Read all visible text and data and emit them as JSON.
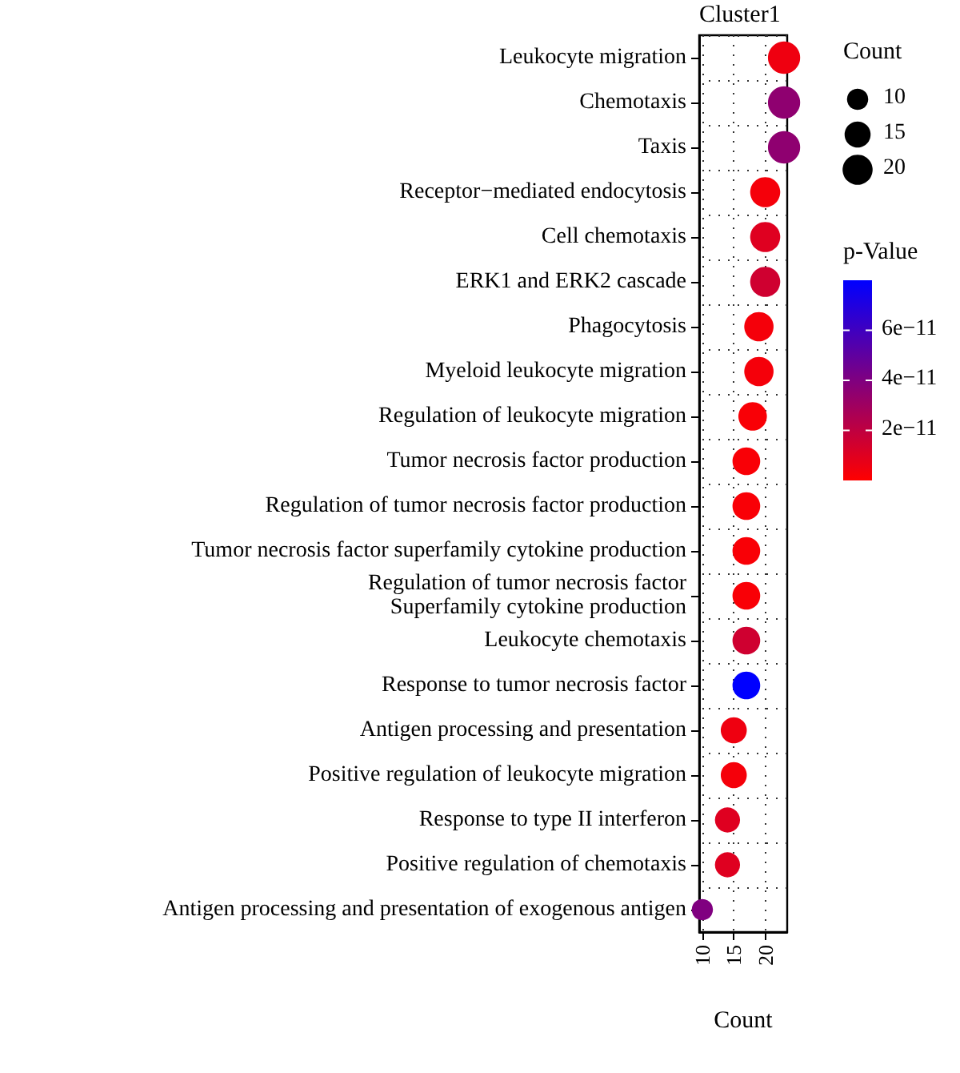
{
  "chart_data": {
    "type": "bubble",
    "title": "Cluster1",
    "xlabel": "Count",
    "legend_title": "Count",
    "clabel": "p-Value",
    "orientation": "horizontal",
    "categories": [
      "Leukocyte migration",
      "Chemotaxis",
      "Taxis",
      "Receptor−mediated endocytosis",
      "Cell chemotaxis",
      "ERK1 and ERK2 cascade",
      "Phagocytosis",
      "Myeloid leukocyte migration",
      "Regulation of leukocyte migration",
      "Tumor necrosis factor production",
      "Regulation of tumor necrosis factor production",
      "Tumor necrosis factor superfamily cytokine production",
      "Regulation of tumor necrosis factor\nSuperfamily cytokine production",
      "Leukocyte chemotaxis",
      "Response to tumor necrosis factor",
      "Antigen processing and presentation",
      "Positive regulation of leukocyte migration",
      "Response to type II interferon",
      "Positive regulation of chemotaxis",
      "Antigen processing and presentation of exogenous antigen"
    ],
    "values": [
      23,
      23,
      23,
      20,
      20,
      20,
      19,
      19,
      18,
      17,
      17,
      17,
      17,
      17,
      17,
      15,
      15,
      14,
      14,
      10
    ],
    "sizes": [
      23,
      23,
      23,
      20,
      20,
      20,
      19,
      19,
      18,
      17,
      17,
      17,
      17,
      17,
      17,
      15,
      15,
      14,
      14,
      10
    ],
    "size_legend": [
      10,
      15,
      20
    ],
    "cvalues": [
      5e-12,
      3.5e-11,
      3.5e-11,
      3e-12,
      1e-11,
      1.5e-11,
      3e-12,
      3e-12,
      2e-12,
      2e-12,
      2e-12,
      2e-12,
      2e-12,
      1.5e-11,
      8e-11,
      5e-12,
      3e-12,
      1e-11,
      1e-11,
      4e-11
    ],
    "clim": [
      0,
      8e-11
    ],
    "cticks": [
      {
        "value": 2e-11,
        "label": "2e−11"
      },
      {
        "value": 4e-11,
        "label": "4e−11"
      },
      {
        "value": 6e-11,
        "label": "6e−11"
      }
    ],
    "xlim": [
      9.5,
      23.5
    ],
    "xticks": [
      10,
      15,
      20
    ],
    "grid": true
  }
}
